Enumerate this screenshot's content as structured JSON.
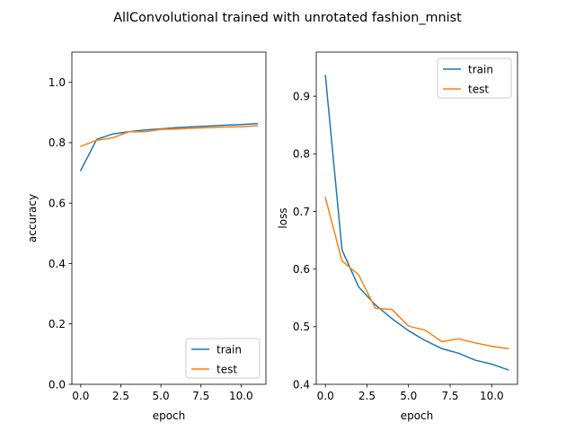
{
  "suptitle": "AllConvolutional trained with unrotated fashion_mnist",
  "colors": {
    "train": "#1f77b4",
    "test": "#ff7f0e"
  },
  "chart_data": [
    {
      "type": "line",
      "title": "",
      "xlabel": "epoch",
      "ylabel": "accuracy",
      "xlim": [
        -0.55,
        11.55
      ],
      "ylim": [
        0.0,
        1.1
      ],
      "xticks": [
        0,
        2.5,
        5,
        7.5,
        10
      ],
      "xtick_labels": [
        "0.0",
        "2.5",
        "5.0",
        "7.5",
        "10.0"
      ],
      "yticks": [
        0,
        0.2,
        0.4,
        0.6,
        0.8,
        1.0
      ],
      "ytick_labels": [
        "0.0",
        "0.2",
        "0.4",
        "0.6",
        "0.8",
        "1.0"
      ],
      "grid": false,
      "legend_position": "lower-right",
      "x": [
        0,
        1,
        2,
        3,
        4,
        5,
        6,
        7,
        8,
        9,
        10,
        11
      ],
      "series": [
        {
          "name": "train",
          "values": [
            0.708,
            0.811,
            0.829,
            0.836,
            0.842,
            0.846,
            0.85,
            0.853,
            0.855,
            0.858,
            0.86,
            0.863
          ]
        },
        {
          "name": "test",
          "values": [
            0.788,
            0.808,
            0.816,
            0.836,
            0.836,
            0.844,
            0.845,
            0.848,
            0.85,
            0.852,
            0.853,
            0.856
          ]
        }
      ]
    },
    {
      "type": "line",
      "title": "",
      "xlabel": "epoch",
      "ylabel": "loss",
      "xlim": [
        -0.55,
        11.55
      ],
      "ylim": [
        0.4,
        0.9766
      ],
      "xticks": [
        0,
        2.5,
        5,
        7.5,
        10
      ],
      "xtick_labels": [
        "0.0",
        "2.5",
        "5.0",
        "7.5",
        "10.0"
      ],
      "yticks": [
        0.4,
        0.5,
        0.6,
        0.7,
        0.8,
        0.9
      ],
      "ytick_labels": [
        "0.4",
        "0.5",
        "0.6",
        "0.7",
        "0.8",
        "0.9"
      ],
      "grid": false,
      "legend_position": "upper-right",
      "x": [
        0,
        1,
        2,
        3,
        4,
        5,
        6,
        7,
        8,
        9,
        10,
        11
      ],
      "series": [
        {
          "name": "train",
          "values": [
            0.936,
            0.633,
            0.569,
            0.538,
            0.514,
            0.493,
            0.476,
            0.462,
            0.454,
            0.442,
            0.435,
            0.425
          ]
        },
        {
          "name": "test",
          "values": [
            0.724,
            0.614,
            0.59,
            0.532,
            0.53,
            0.501,
            0.494,
            0.474,
            0.479,
            0.472,
            0.466,
            0.462
          ]
        }
      ]
    }
  ]
}
